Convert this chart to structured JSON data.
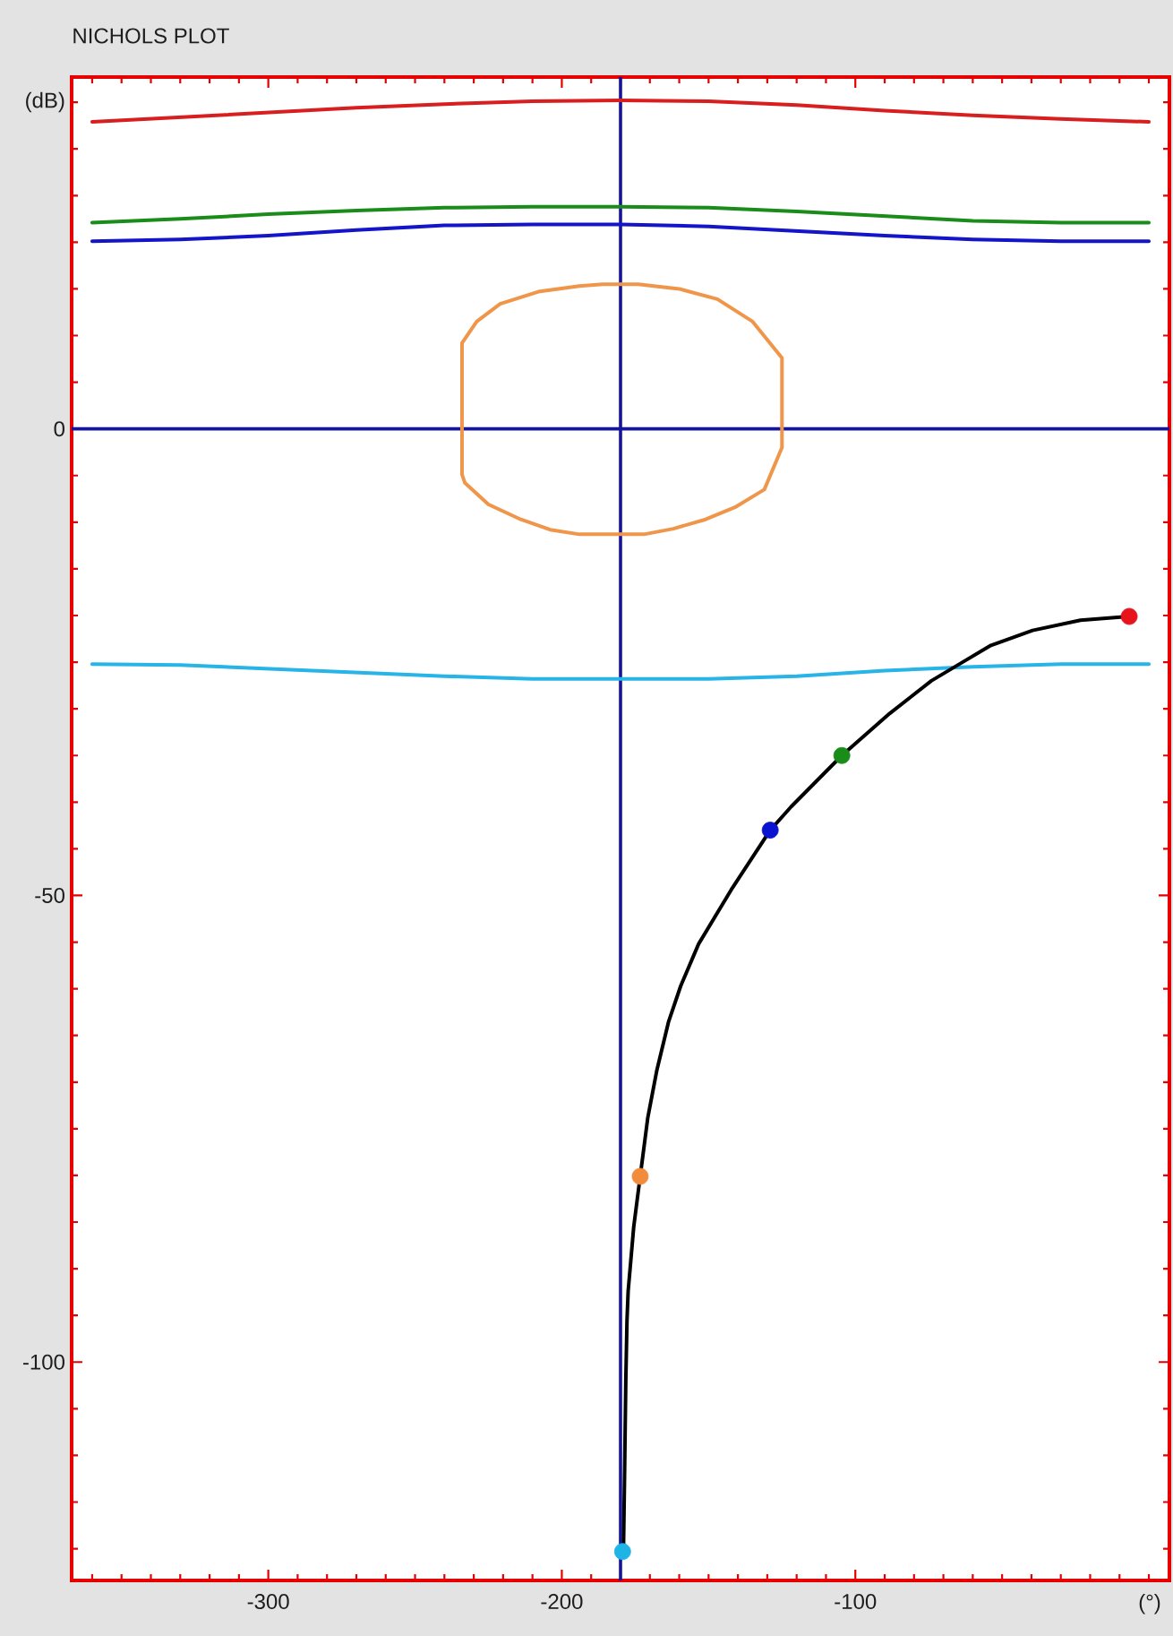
{
  "chart_data": {
    "type": "line",
    "title": "NICHOLS PLOT",
    "xlabel": "(°)",
    "ylabel": "(dB)",
    "xlim": [
      -367,
      7
    ],
    "ylim": [
      -123.4,
      37.7
    ],
    "xticks": [
      {
        "value": -360,
        "label": null
      },
      {
        "value": -350,
        "label": null
      },
      {
        "value": -340,
        "label": null
      },
      {
        "value": -330,
        "label": null
      },
      {
        "value": -320,
        "label": null
      },
      {
        "value": -310,
        "label": null
      },
      -300,
      {
        "value": -290,
        "label": null
      },
      {
        "value": -280,
        "label": null
      },
      {
        "value": -270,
        "label": null
      },
      {
        "value": -260,
        "label": null
      },
      {
        "value": -250,
        "label": null
      },
      {
        "value": -240,
        "label": null
      },
      {
        "value": -230,
        "label": null
      },
      {
        "value": -220,
        "label": null
      },
      {
        "value": -210,
        "label": null
      },
      -200,
      {
        "value": -190,
        "label": null
      },
      {
        "value": -180,
        "label": null
      },
      {
        "value": -170,
        "label": null
      },
      {
        "value": -160,
        "label": null
      },
      {
        "value": -150,
        "label": null
      },
      {
        "value": -140,
        "label": null
      },
      {
        "value": -130,
        "label": null
      },
      {
        "value": -120,
        "label": null
      },
      {
        "value": -110,
        "label": null
      },
      -100,
      {
        "value": -90,
        "label": null
      },
      {
        "value": -80,
        "label": null
      },
      {
        "value": -70,
        "label": null
      },
      {
        "value": -60,
        "label": null
      },
      {
        "value": -50,
        "label": null
      },
      {
        "value": -40,
        "label": null
      },
      {
        "value": -30,
        "label": null
      },
      {
        "value": -20,
        "label": null
      },
      {
        "value": -10,
        "label": null
      },
      {
        "value": 0,
        "label": null
      }
    ],
    "yticks": [
      {
        "value": -120,
        "label": null
      },
      {
        "value": -115,
        "label": null
      },
      {
        "value": -110,
        "label": null
      },
      {
        "value": -105,
        "label": null
      },
      -100,
      {
        "value": -95,
        "label": null
      },
      {
        "value": -90,
        "label": null
      },
      {
        "value": -85,
        "label": null
      },
      {
        "value": -80,
        "label": null
      },
      {
        "value": -75,
        "label": null
      },
      {
        "value": -70,
        "label": null
      },
      {
        "value": -65,
        "label": null
      },
      {
        "value": -60,
        "label": null
      },
      {
        "value": -55,
        "label": null
      },
      -50,
      {
        "value": -45,
        "label": null
      },
      {
        "value": -40,
        "label": null
      },
      {
        "value": -35,
        "label": null
      },
      {
        "value": -30,
        "label": null
      },
      {
        "value": -25,
        "label": null
      },
      {
        "value": -20,
        "label": null
      },
      {
        "value": -15,
        "label": null
      },
      {
        "value": -10,
        "label": null
      },
      {
        "value": -5,
        "label": null
      },
      0,
      {
        "value": 5,
        "label": null
      },
      {
        "value": 10,
        "label": null
      },
      {
        "value": 15,
        "label": null
      },
      {
        "value": 20,
        "label": null
      },
      {
        "value": 25,
        "label": null
      },
      {
        "value": 30,
        "label": null
      },
      {
        "value": 35,
        "label": null
      }
    ],
    "ref_lines": [
      {
        "axis": "x",
        "value": -180,
        "color": "#1414a0"
      },
      {
        "axis": "y",
        "value": 0,
        "color": "#1414a0"
      }
    ],
    "series": [
      {
        "color": "#d81e1e",
        "x": [
          -360,
          -330,
          -300,
          -270,
          -240,
          -210,
          -180,
          -150,
          -120,
          -90,
          -60,
          -30,
          0
        ],
        "values": [
          32.9,
          33.4,
          33.9,
          34.4,
          34.8,
          35.1,
          35.2,
          35.1,
          34.7,
          34.1,
          33.6,
          33.2,
          32.9
        ]
      },
      {
        "color": "#1a8c1a",
        "x": [
          -360,
          -330,
          -300,
          -270,
          -240,
          -210,
          -180,
          -150,
          -120,
          -90,
          -60,
          -30,
          0
        ],
        "values": [
          22.1,
          22.5,
          23.0,
          23.4,
          23.7,
          23.8,
          23.8,
          23.7,
          23.3,
          22.8,
          22.3,
          22.1,
          22.1
        ]
      },
      {
        "color": "#1414c8",
        "x": [
          -360,
          -330,
          -300,
          -270,
          -240,
          -210,
          -180,
          -150,
          -120,
          -90,
          -60,
          -30,
          0
        ],
        "values": [
          20.1,
          20.3,
          20.7,
          21.3,
          21.8,
          21.9,
          21.9,
          21.7,
          21.2,
          20.7,
          20.3,
          20.1,
          20.1
        ]
      },
      {
        "color": "#f0964b",
        "x": [
          -234,
          -234,
          -229,
          -221,
          -208,
          -194,
          -186,
          -174,
          -160,
          -147,
          -135,
          -125,
          -125,
          -131,
          -141,
          -151,
          -162,
          -172,
          -194,
          -204,
          -214,
          -225,
          -233,
          -234,
          -234
        ],
        "values": [
          -4.9,
          9.2,
          11.5,
          13.4,
          14.7,
          15.3,
          15.5,
          15.5,
          15.0,
          13.9,
          11.5,
          7.6,
          -2.0,
          -6.5,
          -8.4,
          -9.7,
          -10.7,
          -11.3,
          -11.3,
          -10.8,
          -9.7,
          -8.1,
          -5.8,
          -4.9,
          2.0
        ]
      },
      {
        "color": "#28b4e6",
        "x": [
          -360,
          -330,
          -300,
          -270,
          -240,
          -210,
          -180,
          -150,
          -120,
          -90,
          -60,
          -30,
          0
        ],
        "values": [
          -25.2,
          -25.3,
          -25.7,
          -26.1,
          -26.5,
          -26.8,
          -26.8,
          -26.8,
          -26.5,
          -25.9,
          -25.5,
          -25.2,
          -25.2
        ]
      },
      {
        "color": "#000000",
        "x": [
          -179,
          -178.6,
          -178.2,
          -177.8,
          -177.4,
          -175.5,
          -173.3,
          -170.7,
          -167.6,
          -163.6,
          -159.5,
          -153.4,
          -142.3,
          -129,
          -121.9,
          -104.6,
          -88.3,
          -74.1,
          -64,
          -53.8,
          -39.6,
          -23.3,
          -6.7
        ],
        "values": [
          -120.3,
          -111.6,
          -102,
          -95.6,
          -92.4,
          -85.5,
          -80.1,
          -73.8,
          -68.7,
          -63.5,
          -59.7,
          -55.2,
          -49.4,
          -43,
          -40.5,
          -35,
          -30.5,
          -27,
          -25.1,
          -23.2,
          -21.6,
          -20.5,
          -20.1
        ]
      },
      {
        "type": "scatter",
        "marker": "circle",
        "x": [
          -6.7,
          -104.6,
          -129,
          -173.3,
          -179.3
        ],
        "values": [
          -20.1,
          -35.0,
          -43.0,
          -80.1,
          -120.3
        ],
        "colors": [
          "#e8141c",
          "#1a8c1a",
          "#0a14d0",
          "#f08c3c",
          "#1eb4e6"
        ]
      }
    ]
  }
}
